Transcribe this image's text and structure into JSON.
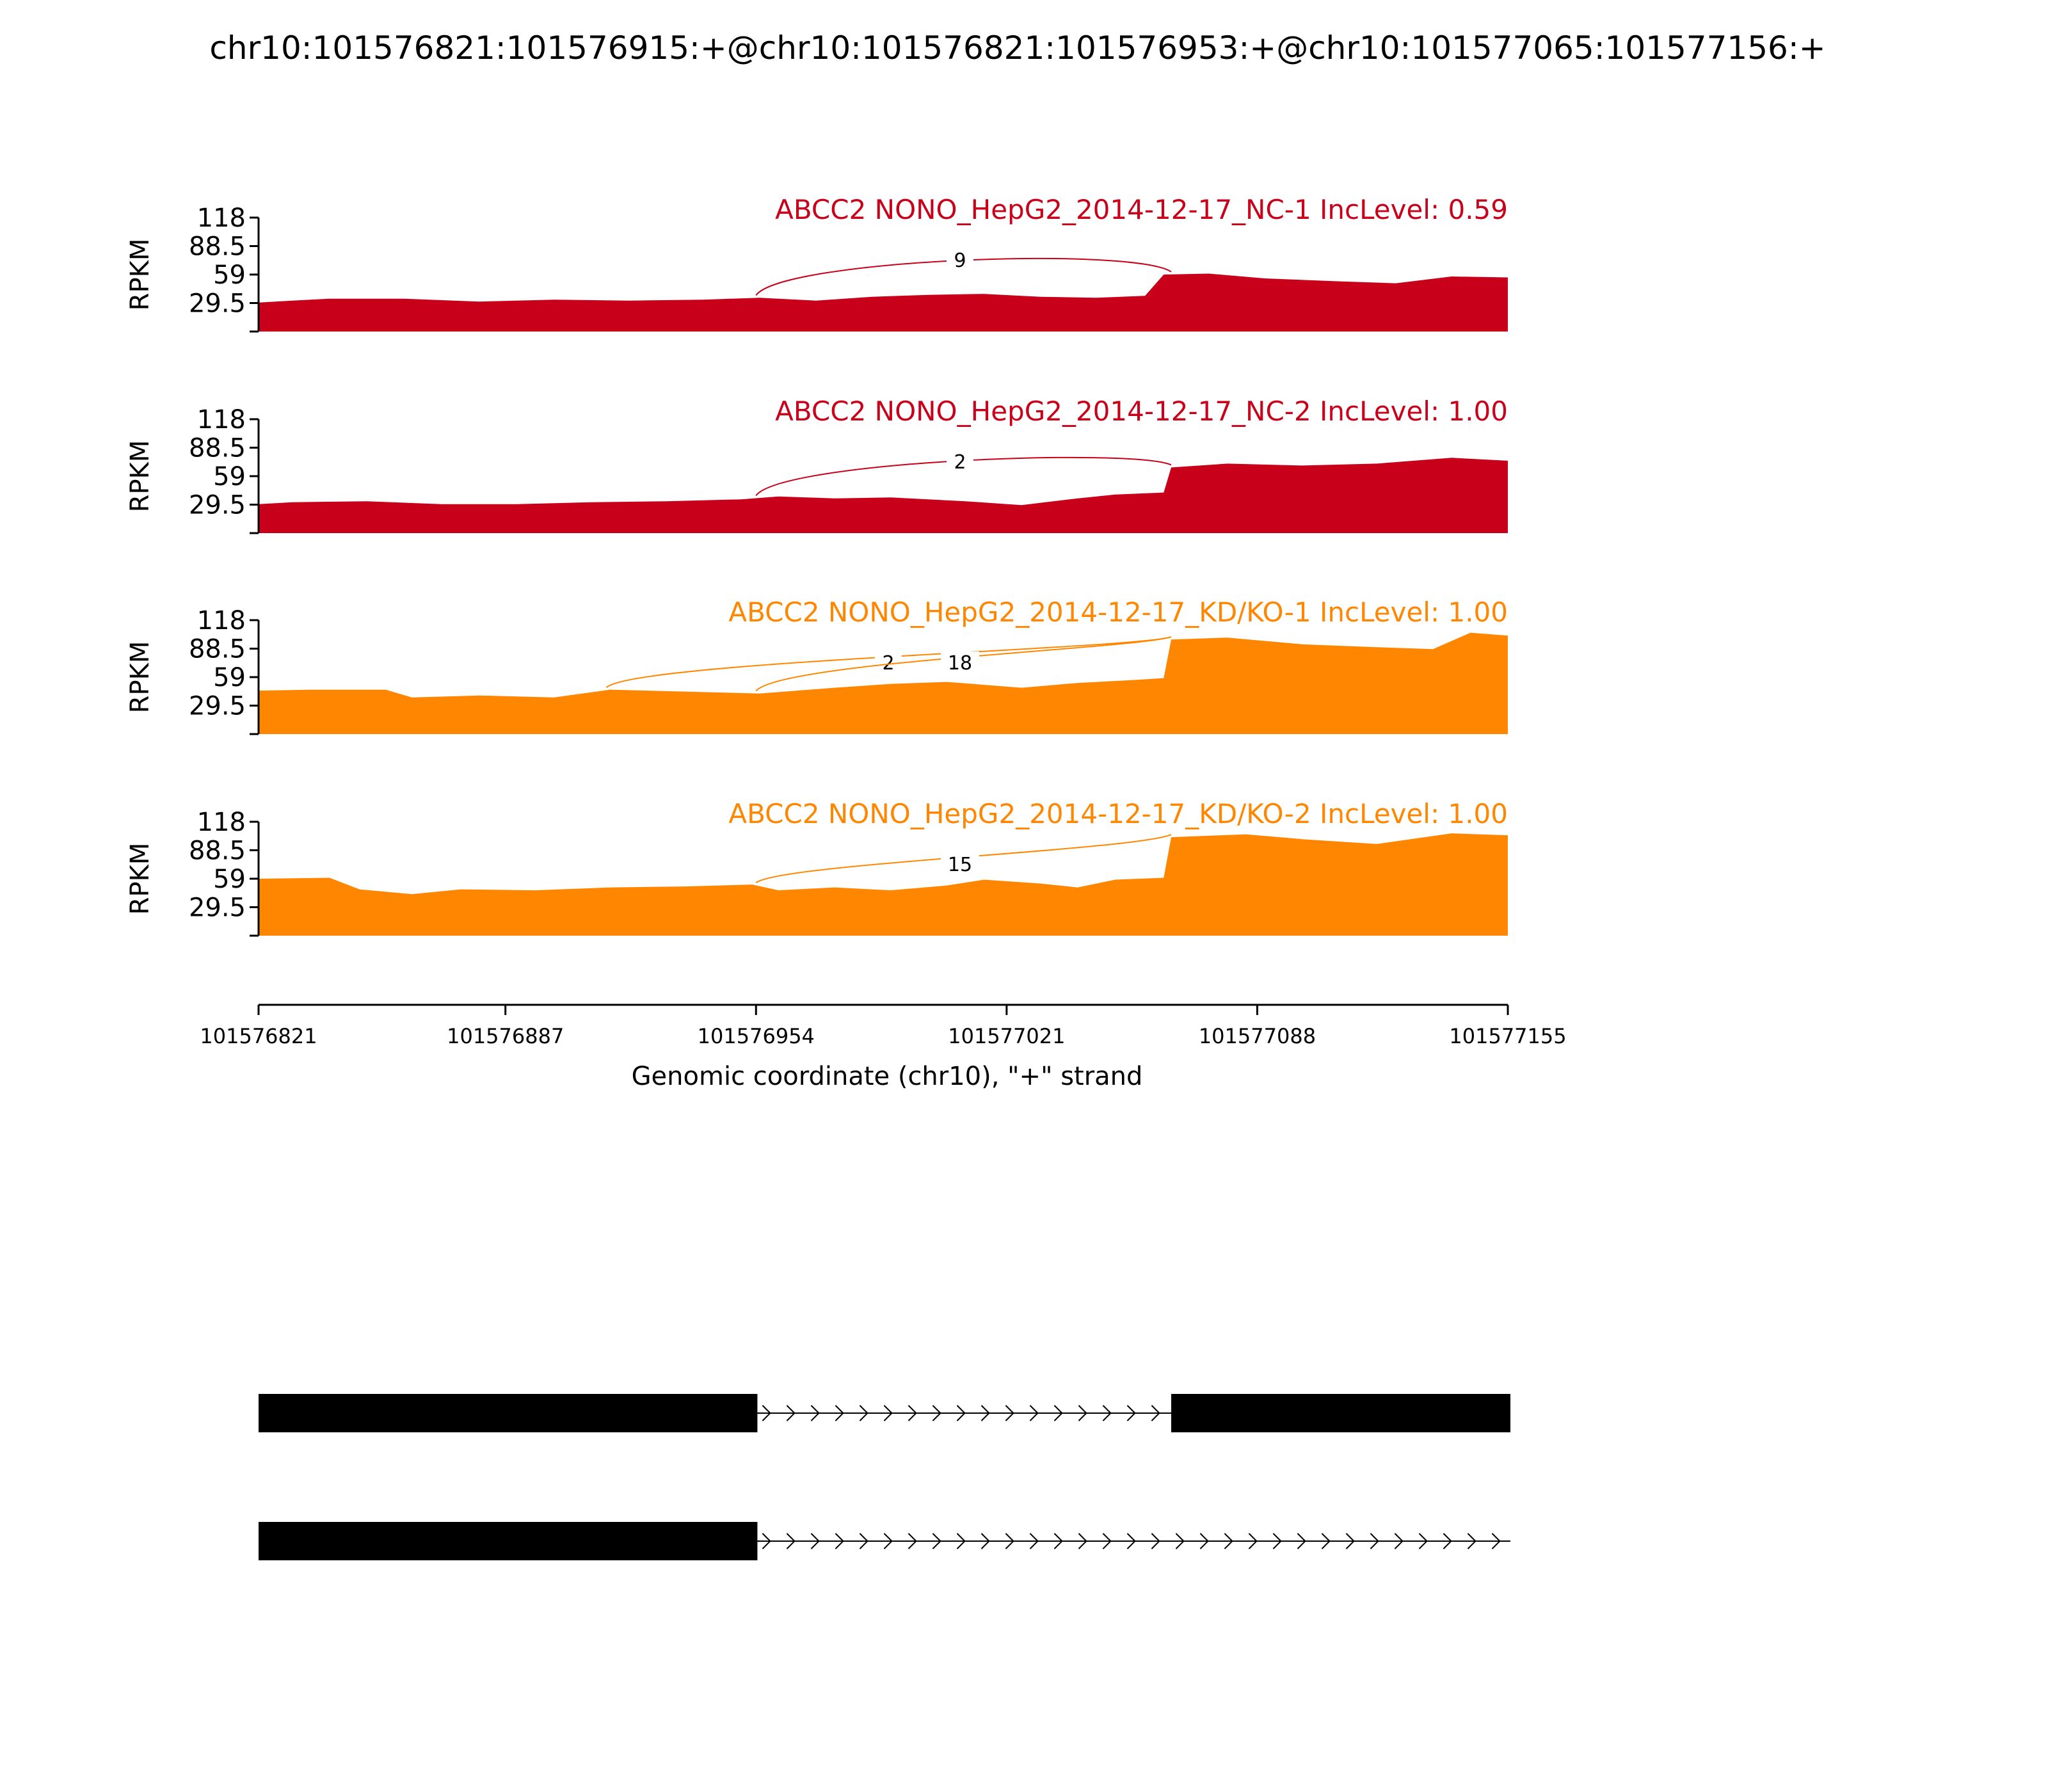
{
  "title": "chr10:101576821:101576915:+@chr10:101576821:101576953:+@chr10:101577065:101577156:+",
  "chart_data": {
    "type": "area",
    "xlabel": "Genomic coordinate (chr10), \"+\" strand",
    "xlim": [
      101576821,
      101577155
    ],
    "xticks": [
      "101576821",
      "101576887",
      "101576954",
      "101577021",
      "101577088",
      "101577155"
    ],
    "ylabel": "RPKM",
    "ylim": [
      0,
      118
    ],
    "yticks": [
      "118",
      "88.5",
      "59",
      "29.5"
    ],
    "panels": [
      {
        "label": "ABCC2 NONO_HepG2_2014-12-17_NC-1 IncLevel: 0.59",
        "color": "#c8001a",
        "coverage": {
          "x": [
            101576821,
            101576830,
            101576840,
            101576860,
            101576880,
            101576900,
            101576920,
            101576940,
            101576955,
            101576970,
            101576985,
            101577000,
            101577015,
            101577030,
            101577045,
            101577058,
            101577063,
            101577075,
            101577090,
            101577110,
            101577125,
            101577140,
            101577155
          ],
          "y": [
            30,
            32,
            34,
            34,
            31,
            33,
            32,
            33,
            35,
            32,
            36,
            38,
            39,
            36,
            35,
            37,
            59,
            60,
            55,
            52,
            50,
            57,
            56
          ]
        },
        "junctions": [
          {
            "start": 101576954,
            "end": 101577065,
            "count": "9"
          }
        ]
      },
      {
        "label": "ABCC2 NONO_HepG2_2014-12-17_NC-2 IncLevel: 1.00",
        "color": "#c8001a",
        "coverage": {
          "x": [
            101576821,
            101576830,
            101576850,
            101576870,
            101576890,
            101576910,
            101576930,
            101576950,
            101576960,
            101576975,
            101576990,
            101577010,
            101577025,
            101577040,
            101577050,
            101577063,
            101577065,
            101577080,
            101577100,
            101577120,
            101577140,
            101577155
          ],
          "y": [
            30,
            32,
            33,
            30,
            30,
            32,
            33,
            35,
            38,
            36,
            37,
            33,
            29,
            36,
            40,
            42,
            68,
            72,
            70,
            72,
            78,
            75
          ]
        },
        "junctions": [
          {
            "start": 101576954,
            "end": 101577065,
            "count": "2"
          }
        ]
      },
      {
        "label": "ABCC2 NONO_HepG2_2014-12-17_KD/KO-1 IncLevel: 1.00",
        "color": "#ff8600",
        "coverage": {
          "x": [
            101576821,
            101576835,
            101576855,
            101576862,
            101576880,
            101576900,
            101576915,
            101576935,
            101576955,
            101576975,
            101576990,
            101577005,
            101577025,
            101577040,
            101577055,
            101577063,
            101577065,
            101577080,
            101577100,
            101577120,
            101577135,
            101577145,
            101577155
          ],
          "y": [
            45,
            46,
            46,
            38,
            40,
            38,
            46,
            44,
            42,
            48,
            52,
            54,
            48,
            53,
            56,
            58,
            98,
            100,
            93,
            90,
            88,
            105,
            102
          ]
        },
        "junctions": [
          {
            "start": 101576914,
            "end": 101577065,
            "count": "2"
          },
          {
            "start": 101576954,
            "end": 101577065,
            "count": "18"
          }
        ]
      },
      {
        "label": "ABCC2 NONO_HepG2_2014-12-17_KD/KO-2 IncLevel: 1.00",
        "color": "#ff8600",
        "coverage": {
          "x": [
            101576821,
            101576840,
            101576848,
            101576862,
            101576875,
            101576895,
            101576915,
            101576935,
            101576953,
            101576960,
            101576975,
            101576990,
            101577005,
            101577015,
            101577030,
            101577040,
            101577050,
            101577063,
            101577065,
            101577085,
            101577100,
            101577120,
            101577140,
            101577155
          ],
          "y": [
            59,
            60,
            48,
            43,
            48,
            47,
            50,
            51,
            53,
            47,
            50,
            47,
            52,
            58,
            54,
            50,
            58,
            60,
            102,
            105,
            100,
            95,
            106,
            104
          ]
        },
        "junctions": [
          {
            "start": 101576954,
            "end": 101577065,
            "count": "15"
          }
        ]
      }
    ],
    "isoforms": [
      {
        "exons": [
          [
            101576821,
            101576953
          ],
          [
            101577065,
            101577156
          ]
        ]
      },
      {
        "exons": [
          [
            101576821,
            101576953
          ]
        ]
      }
    ]
  }
}
